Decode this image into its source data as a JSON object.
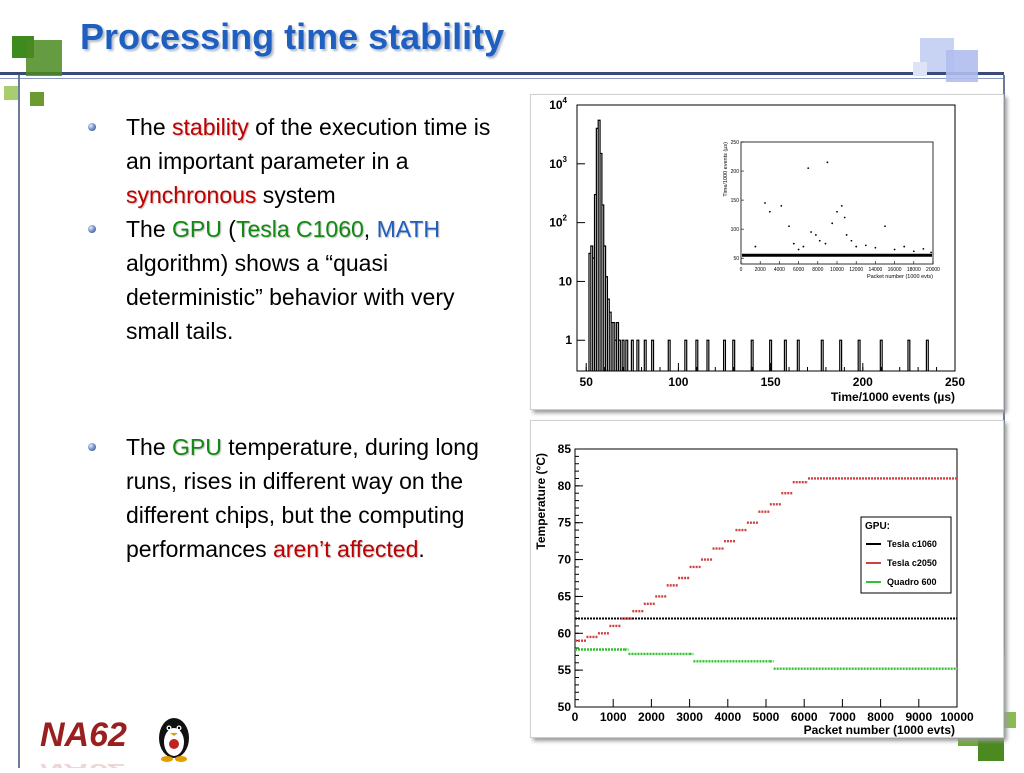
{
  "slide": {
    "title": "Processing time stability",
    "logo_text": "NA62"
  },
  "colors": {
    "title": "#1f5fbf",
    "red_emphasis": "#c00000",
    "green_emphasis": "#128a12",
    "blue_emphasis": "#1f5fbf",
    "frame_line": "#3a4a7a",
    "green_square": "#4a8a20",
    "blue_square": "#b8c4ee"
  },
  "bullets": {
    "b1": {
      "p1": "The ",
      "e1": "stability",
      "p2": " of the execution time is an important parameter in a ",
      "e2": "synchronous",
      "p3": " system"
    },
    "b2": {
      "p1": "The ",
      "e1": "GPU",
      "p2": " (",
      "e2": "Tesla C1060",
      "p3": ", ",
      "e3": "MATH",
      "p4": " algorithm) shows a “quasi deterministic” behavior with very small tails."
    },
    "b3": {
      "p1": "The ",
      "e1": "GPU",
      "p2": " temperature, during long runs, rises in different way on the different chips, but the computing performances ",
      "e2": "aren’t affected",
      "p3": "."
    }
  },
  "chart_data": [
    {
      "type": "line",
      "xlabel": "Time/1000 events (µs)",
      "ylabel": "",
      "xlim": [
        45,
        250
      ],
      "ylim": [
        0.3,
        10000
      ],
      "log_y": true,
      "x_ticks": [
        "50",
        "100",
        "150",
        "200",
        "250"
      ],
      "y_ticks": [
        "1",
        "10",
        "10^2",
        "10^3",
        "10^4"
      ],
      "series": [
        {
          "x": [
            52,
            53,
            54,
            55,
            56,
            57,
            58,
            59,
            60,
            61,
            62,
            63,
            64,
            65,
            66,
            67,
            68,
            70,
            72,
            75,
            78,
            82,
            86,
            95,
            104,
            110,
            116,
            125,
            130,
            140,
            150,
            158,
            165,
            178,
            188,
            198,
            210,
            225,
            235
          ],
          "y": [
            30,
            40,
            25,
            300,
            4000,
            5500,
            1500,
            200,
            40,
            12,
            5,
            3,
            2,
            2,
            1,
            2,
            1,
            1,
            1,
            1,
            1,
            1,
            1,
            1,
            1,
            1,
            1,
            1,
            1,
            1,
            1,
            1,
            1,
            1,
            1,
            1,
            1,
            1,
            1
          ]
        }
      ],
      "inset": {
        "type": "scatter",
        "xlabel": "Packet number (1000 evts)",
        "ylabel": "Time/1000 events (µs)",
        "xlim": [
          0,
          20000
        ],
        "ylim": [
          40,
          250
        ],
        "x_ticks": [
          "0",
          "2000",
          "4000",
          "6000",
          "8000",
          "10000",
          "12000",
          "14000",
          "16000",
          "18000",
          "20000"
        ],
        "y_ticks": [
          "50",
          "100",
          "150",
          "200",
          "250"
        ],
        "baseline": 55,
        "points": [
          [
            1500,
            70
          ],
          [
            2500,
            145
          ],
          [
            3000,
            130
          ],
          [
            4200,
            140
          ],
          [
            5000,
            105
          ],
          [
            5500,
            75
          ],
          [
            6000,
            65
          ],
          [
            6500,
            70
          ],
          [
            7000,
            205
          ],
          [
            7300,
            95
          ],
          [
            7800,
            90
          ],
          [
            8200,
            80
          ],
          [
            8800,
            75
          ],
          [
            9000,
            215
          ],
          [
            9500,
            110
          ],
          [
            10000,
            130
          ],
          [
            10500,
            140
          ],
          [
            10800,
            120
          ],
          [
            11000,
            90
          ],
          [
            11500,
            80
          ],
          [
            12000,
            70
          ],
          [
            13000,
            72
          ],
          [
            14000,
            68
          ],
          [
            15000,
            105
          ],
          [
            16000,
            65
          ],
          [
            17000,
            70
          ],
          [
            18000,
            62
          ],
          [
            19000,
            66
          ],
          [
            19800,
            60
          ]
        ]
      }
    },
    {
      "type": "scatter",
      "xlabel": "Packet number (1000 evts)",
      "ylabel": "Temperature (°C)",
      "xlim": [
        0,
        10000
      ],
      "ylim": [
        50,
        85
      ],
      "x_ticks": [
        "0",
        "1000",
        "2000",
        "3000",
        "4000",
        "5000",
        "6000",
        "7000",
        "8000",
        "9000",
        "10000"
      ],
      "y_ticks": [
        "50",
        "55",
        "60",
        "65",
        "70",
        "75",
        "80",
        "85"
      ],
      "legend_title": "GPU:",
      "legend_position": "right",
      "series": [
        {
          "name": "Tesla c1060",
          "color": "#000000",
          "x": [
            0,
            10000
          ],
          "y": [
            62,
            62
          ]
        },
        {
          "name": "Tesla c2050",
          "color": "#d04040",
          "x": [
            0,
            300,
            600,
            900,
            1200,
            1500,
            1800,
            2100,
            2400,
            2700,
            3000,
            3300,
            3600,
            3900,
            4200,
            4500,
            4800,
            5100,
            5400,
            5700,
            6100,
            10000
          ],
          "y": [
            59,
            59.5,
            60,
            61,
            62,
            63,
            64,
            65,
            66.5,
            67.5,
            69,
            70,
            71.5,
            72.5,
            74,
            75,
            76.5,
            77.5,
            79,
            80.5,
            81,
            82.2
          ]
        },
        {
          "name": "Quadro 600",
          "color": "#30c030",
          "x": [
            0,
            1300,
            1400,
            3000,
            3100,
            5100,
            5200,
            10000
          ],
          "y": [
            57.8,
            57.8,
            57.2,
            57.2,
            56.2,
            56.2,
            55.2,
            55.2
          ]
        }
      ]
    }
  ]
}
